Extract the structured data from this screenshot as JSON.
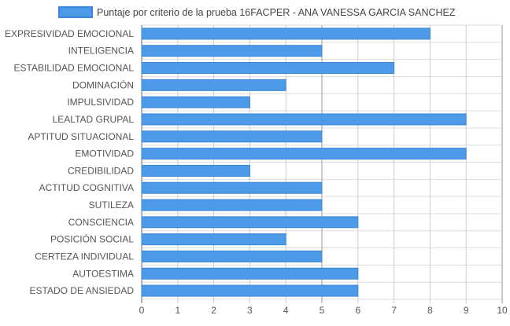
{
  "chart_data": {
    "type": "bar",
    "orientation": "horizontal",
    "series": [
      {
        "name": "Puntaje por criterio de la prueba 16FACPER - ANA VANESSA GARCIA SANCHEZ",
        "values": [
          8,
          5,
          7,
          4,
          3,
          9,
          5,
          9,
          3,
          5,
          5,
          6,
          4,
          5,
          6,
          6
        ]
      }
    ],
    "categories": [
      "EXPRESIVIDAD EMOCIONAL",
      "INTELIGENCIA",
      "ESTABILIDAD EMOCIONAL",
      "DOMINACIÓN",
      "IMPULSIVIDAD",
      "LEALTAD GRUPAL",
      "APTITUD SITUACIONAL",
      "EMOTIVIDAD",
      "CREDIBILIDAD",
      "ACTITUD COGNITIVA",
      "SUTILEZA",
      "CONSCIENCIA",
      "POSICIÓN SOCIAL",
      "CERTEZA INDIVIDUAL",
      "AUTOESTIMA",
      "ESTADO DE ANSIEDAD"
    ],
    "xlim": [
      0,
      10
    ],
    "x_ticks": [
      "0",
      "1",
      "2",
      "3",
      "4",
      "5",
      "6",
      "7",
      "8",
      "9",
      "10"
    ],
    "grid": true,
    "legend_position": "top",
    "colors": {
      "bar_fill": "#4d9be8",
      "bar_stroke": "#3a85d6",
      "grid": "#cccccc",
      "grid_major": "#999999",
      "text": "#555555"
    }
  }
}
